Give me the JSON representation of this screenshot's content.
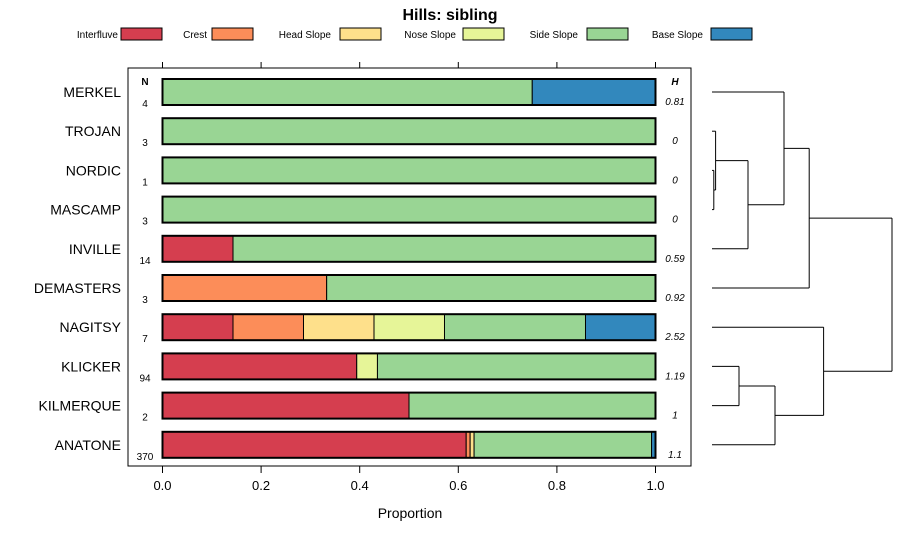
{
  "chart_data": {
    "type": "bar",
    "stacked": true,
    "orientation": "horizontal",
    "title": "Hills: sibling",
    "xlabel": "Proportion",
    "ylabel": "",
    "xlim": [
      0,
      1
    ],
    "xticks": [
      "0.0",
      "0.2",
      "0.4",
      "0.6",
      "0.8",
      "1.0"
    ],
    "xtick_values": [
      0,
      0.2,
      0.4,
      0.6,
      0.8,
      1.0
    ],
    "n_header": "N",
    "h_header": "H",
    "legend": [
      {
        "label": "Interfluve",
        "color": "#D53E4F"
      },
      {
        "label": "Crest",
        "color": "#FC8D59"
      },
      {
        "label": "Head Slope",
        "color": "#FEE08B"
      },
      {
        "label": "Nose Slope",
        "color": "#E6F598"
      },
      {
        "label": "Side Slope",
        "color": "#99D594"
      },
      {
        "label": "Base Slope",
        "color": "#3288BD"
      }
    ],
    "rows": [
      {
        "name": "MERKEL",
        "n": "4",
        "h": "0.81",
        "values": [
          0,
          0,
          0,
          0,
          0.75,
          0.25
        ]
      },
      {
        "name": "TROJAN",
        "n": "3",
        "h": "0",
        "values": [
          0,
          0,
          0,
          0,
          1.0,
          0
        ]
      },
      {
        "name": "NORDIC",
        "n": "1",
        "h": "0",
        "values": [
          0,
          0,
          0,
          0,
          1.0,
          0
        ]
      },
      {
        "name": "MASCAMP",
        "n": "3",
        "h": "0",
        "values": [
          0,
          0,
          0,
          0,
          1.0,
          0
        ]
      },
      {
        "name": "INVILLE",
        "n": "14",
        "h": "0.59",
        "values": [
          0.143,
          0,
          0,
          0,
          0.857,
          0
        ]
      },
      {
        "name": "DEMASTERS",
        "n": "3",
        "h": "0.92",
        "values": [
          0,
          0.333,
          0,
          0,
          0.667,
          0
        ]
      },
      {
        "name": "NAGITSY",
        "n": "7",
        "h": "2.52",
        "values": [
          0.143,
          0.143,
          0.143,
          0.143,
          0.286,
          0.142
        ]
      },
      {
        "name": "KLICKER",
        "n": "94",
        "h": "1.19",
        "values": [
          0.394,
          0,
          0,
          0.042,
          0.564,
          0
        ]
      },
      {
        "name": "KILMERQUE",
        "n": "2",
        "h": "1",
        "values": [
          0.5,
          0,
          0,
          0,
          0.5,
          0
        ]
      },
      {
        "name": "ANATONE",
        "n": "370",
        "h": "1.1",
        "values": [
          0.616,
          0.008,
          0.008,
          0,
          0.36,
          0.008
        ]
      }
    ],
    "dendrogram": {
      "leaf_order": [
        "MERKEL",
        "TROJAN",
        "NORDIC",
        "MASCAMP",
        "INVILLE",
        "DEMASTERS",
        "NAGITSY",
        "KLICKER",
        "KILMERQUE",
        "ANATONE"
      ],
      "merges": [
        {
          "a": "NORDIC",
          "b": "MASCAMP",
          "height": 0.01
        },
        {
          "a": "TROJAN",
          "b": "NORDIC+MASCAMP",
          "height": 0.02
        },
        {
          "a": "INVILLE",
          "b": "TROJAN+NORDIC+MASCAMP",
          "height": 0.2
        },
        {
          "a": "MERKEL",
          "b": "INVILLE+TROJAN+NORDIC+MASCAMP",
          "height": 0.4
        },
        {
          "a": "KLICKER",
          "b": "KILMERQUE",
          "height": 0.15
        },
        {
          "a": "DEMASTERS",
          "b": "MERKEL+INVILLE+TROJAN+NORDIC+MASCAMP",
          "height": 0.54
        },
        {
          "a": "KLICKER+KILMERQUE",
          "b": "ANATONE",
          "height": 0.35
        },
        {
          "a": "NAGITSY",
          "b": "KLICKER+KILMERQUE+ANATONE",
          "height": 0.62
        },
        {
          "a": "DEMASTERS+MERKEL+INVILLE+TROJAN+NORDIC+MASCAMP",
          "b": "NAGITSY+KLICKER+KILMERQUE+ANATONE",
          "height": 1.0
        }
      ]
    }
  }
}
